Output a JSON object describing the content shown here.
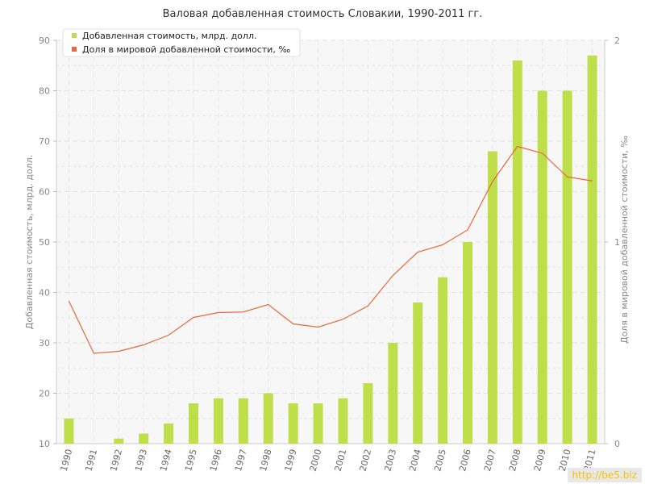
{
  "chart_data": {
    "type": "bar",
    "title": "Валовая добавленная стоимость Словакии, 1990-2011 гг.",
    "categories": [
      "1990",
      "1991",
      "1992",
      "1993",
      "1994",
      "1995",
      "1996",
      "1997",
      "1998",
      "1999",
      "2000",
      "2001",
      "2002",
      "2003",
      "2004",
      "2005",
      "2006",
      "2007",
      "2008",
      "2009",
      "2010",
      "2011"
    ],
    "series": [
      {
        "name": "Добавленная стоимость, млрд. долл.",
        "type": "bar",
        "axis": "left",
        "color": "#bedf4a",
        "values": [
          15,
          null,
          11,
          12,
          14,
          18,
          19,
          19,
          20,
          18,
          18,
          19,
          22,
          30,
          38,
          43,
          50,
          68,
          86,
          80,
          80,
          87
        ]
      },
      {
        "name": "Доля в мировой добавленной стоимости, ‰",
        "type": "line",
        "axis": "right",
        "color": "#e8683a",
        "values": [
          0.707,
          0.448,
          0.458,
          0.49,
          0.538,
          0.626,
          0.65,
          0.653,
          0.69,
          0.594,
          0.578,
          0.617,
          0.683,
          0.834,
          0.95,
          0.986,
          1.06,
          1.3,
          1.474,
          1.44,
          1.323,
          1.303
        ]
      }
    ],
    "ylabel": "Добавленная стоимость, млрд. долл.",
    "ylabel_right": "Доля в мировой добавленной стоимости, ‰",
    "ylim": [
      10,
      90
    ],
    "yticks": [
      10,
      20,
      30,
      40,
      50,
      60,
      70,
      80,
      90
    ],
    "ylim_right": [
      0,
      2
    ],
    "yticks_right": [
      0,
      1,
      2
    ],
    "grid": true,
    "legend_position": "top-left"
  },
  "watermark": "http://be5.biz"
}
